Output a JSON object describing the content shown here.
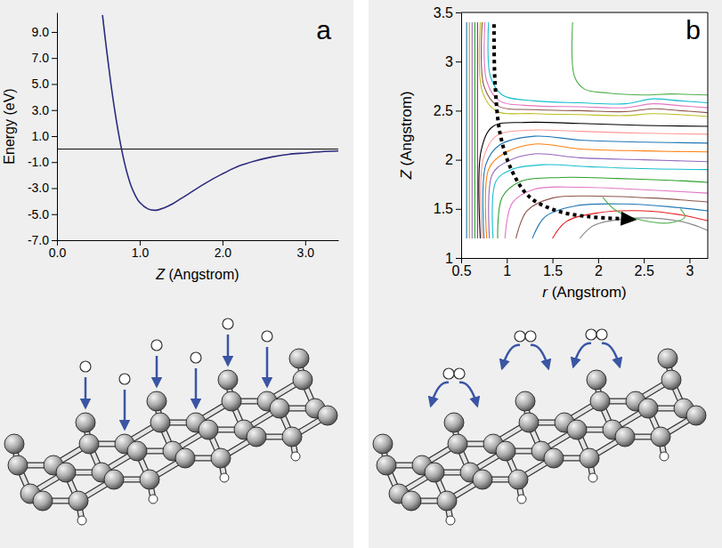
{
  "chart_data": [
    {
      "type": "line",
      "label": "a",
      "xlabel": "Z (Angstrom)",
      "ylabel": "Energy (eV)",
      "color": "#2b2b7e",
      "x": [
        0.55,
        0.6,
        0.65,
        0.7,
        0.75,
        0.8,
        0.85,
        0.9,
        0.95,
        1.0,
        1.1,
        1.2,
        1.3,
        1.4,
        1.5,
        1.6,
        1.8,
        2.0,
        2.2,
        2.4,
        2.6,
        2.8,
        3.0,
        3.2,
        3.4
      ],
      "values": [
        10.3,
        7.6,
        5.1,
        2.9,
        1.0,
        -0.6,
        -1.9,
        -2.9,
        -3.6,
        -4.1,
        -4.6,
        -4.7,
        -4.5,
        -4.2,
        -3.8,
        -3.4,
        -2.6,
        -1.9,
        -1.3,
        -0.9,
        -0.6,
        -0.4,
        -0.3,
        -0.2,
        -0.15
      ],
      "baseline": 0,
      "xlim": [
        0,
        3.4
      ],
      "xticks": [
        {
          "value": 0,
          "label": "0.0"
        },
        {
          "value": 1,
          "label": "1.0"
        },
        {
          "value": 2,
          "label": "2.0"
        },
        {
          "value": 3,
          "label": "3.0"
        }
      ],
      "ylim": [
        -7,
        10.5
      ],
      "yticks": [
        {
          "value": 9,
          "label": "9.0"
        },
        {
          "value": 7,
          "label": "7.0"
        },
        {
          "value": 5,
          "label": "5.0"
        },
        {
          "value": 3,
          "label": "3.0"
        },
        {
          "value": 1,
          "label": "1.0"
        },
        {
          "value": -1,
          "label": "-1.0"
        },
        {
          "value": -3,
          "label": "-3.0"
        },
        {
          "value": -5,
          "label": "-5.0"
        },
        {
          "value": -7,
          "label": "-7.0"
        }
      ]
    },
    {
      "type": "contour",
      "label": "b",
      "xlabel": "r (Angstrom)",
      "ylabel": "Z (Angstrom)",
      "xlim": [
        0.5,
        3.2
      ],
      "xticks": [
        0.5,
        1,
        1.5,
        2,
        2.5,
        3
      ],
      "ylim": [
        1,
        3.5
      ],
      "yticks": [
        1,
        1.5,
        2,
        2.5,
        3,
        3.5
      ],
      "series": [
        {
          "color": "#1f77b4",
          "x": [
            0.56,
            0.56
          ],
          "values": [
            3.4,
            1.2
          ]
        },
        {
          "color": "#ff7f0e",
          "x": [
            0.59,
            0.59
          ],
          "values": [
            3.4,
            1.2
          ]
        },
        {
          "color": "#9467bd",
          "x": [
            0.62,
            0.62
          ],
          "values": [
            3.4,
            1.2
          ]
        },
        {
          "color": "#2ca02c",
          "x": [
            0.65,
            0.65
          ],
          "values": [
            3.4,
            1.2
          ]
        },
        {
          "color": "#d62728",
          "x": [
            0.68,
            0.68
          ],
          "values": [
            3.4,
            1.2
          ]
        },
        {
          "color": "#4daf4a",
          "x": [
            1.72,
            1.74,
            1.85,
            2.1,
            2.5,
            2.8,
            3.2
          ],
          "values": [
            3.4,
            2.85,
            2.72,
            2.68,
            2.66,
            2.67,
            2.66
          ]
        },
        {
          "color": "#17becf",
          "x": [
            0.8,
            0.82,
            0.95,
            1.3,
            1.8,
            2.3,
            2.6,
            2.9,
            3.2
          ],
          "values": [
            3.4,
            2.85,
            2.66,
            2.6,
            2.58,
            2.57,
            2.62,
            2.6,
            2.58
          ]
        },
        {
          "color": "#e377c2",
          "x": [
            0.76,
            0.78,
            0.92,
            1.3,
            1.8,
            2.3,
            2.6,
            2.9,
            3.2
          ],
          "values": [
            3.4,
            2.8,
            2.6,
            2.55,
            2.54,
            2.53,
            2.57,
            2.55,
            2.53
          ]
        },
        {
          "color": "#8c564b",
          "x": [
            0.73,
            0.75,
            0.9,
            1.3,
            1.8,
            2.3,
            2.6,
            2.9,
            3.2
          ],
          "values": [
            3.4,
            2.75,
            2.55,
            2.51,
            2.5,
            2.49,
            2.52,
            2.5,
            2.48
          ]
        },
        {
          "color": "#bcbd22",
          "x": [
            0.71,
            0.73,
            0.88,
            1.3,
            1.8,
            2.3,
            2.6,
            3.2
          ],
          "values": [
            3.4,
            2.7,
            2.5,
            2.47,
            2.46,
            2.45,
            2.47,
            2.44
          ]
        },
        {
          "color": "#000000",
          "x": [
            0.71,
            0.72,
            0.85,
            1.2,
            1.8,
            2.5,
            3.2
          ],
          "values": [
            1.2,
            2.1,
            2.34,
            2.38,
            2.37,
            2.35,
            2.34
          ]
        },
        {
          "color": "#ff9896",
          "x": [
            0.73,
            0.74,
            0.88,
            1.2,
            1.8,
            2.5,
            3.2
          ],
          "values": [
            1.2,
            2.0,
            2.24,
            2.3,
            2.29,
            2.27,
            2.26
          ]
        },
        {
          "color": "#1f77b4",
          "x": [
            0.75,
            0.77,
            0.92,
            1.3,
            1.8,
            2.5,
            3.2
          ],
          "values": [
            1.2,
            1.95,
            2.15,
            2.24,
            2.2,
            2.18,
            2.17
          ]
        },
        {
          "color": "#ff7f0e",
          "x": [
            0.78,
            0.8,
            0.96,
            1.3,
            1.8,
            2.5,
            3.2
          ],
          "values": [
            1.2,
            1.9,
            2.06,
            2.16,
            2.11,
            2.09,
            2.08
          ]
        },
        {
          "color": "#9467bd",
          "x": [
            0.81,
            0.84,
            1.0,
            1.3,
            1.8,
            2.5,
            3.2
          ],
          "values": [
            1.2,
            1.85,
            1.98,
            2.06,
            2.02,
            2.0,
            1.98
          ]
        },
        {
          "color": "#17becf",
          "x": [
            0.85,
            0.88,
            1.05,
            1.4,
            1.9,
            2.5,
            3.2
          ],
          "values": [
            1.2,
            1.78,
            1.9,
            1.95,
            1.93,
            1.91,
            1.9
          ]
        },
        {
          "color": "#2ca02c",
          "x": [
            0.9,
            0.95,
            1.15,
            1.6,
            2.2,
            2.8,
            3.2
          ],
          "values": [
            1.2,
            1.62,
            1.78,
            1.82,
            1.81,
            1.79,
            1.77
          ]
        },
        {
          "color": "#e377c2",
          "x": [
            0.98,
            1.06,
            1.3,
            1.8,
            2.4,
            3.2
          ],
          "values": [
            1.2,
            1.56,
            1.7,
            1.72,
            1.7,
            1.66
          ]
        },
        {
          "color": "#8c564b",
          "x": [
            1.1,
            1.22,
            1.5,
            2.0,
            2.6,
            3.2
          ],
          "values": [
            1.2,
            1.48,
            1.61,
            1.63,
            1.61,
            1.57
          ]
        },
        {
          "color": "#1f77b4",
          "x": [
            1.28,
            1.42,
            1.75,
            2.3,
            2.8,
            3.2
          ],
          "values": [
            1.2,
            1.42,
            1.53,
            1.55,
            1.52,
            1.48
          ]
        },
        {
          "color": "#e41a1c",
          "x": [
            1.5,
            1.65,
            2.0,
            2.5,
            2.9,
            3.2
          ],
          "values": [
            1.2,
            1.37,
            1.46,
            1.48,
            1.44,
            1.38
          ]
        },
        {
          "color": "#8c8c8c",
          "x": [
            1.8,
            1.95,
            2.3,
            2.7,
            3.0,
            3.2
          ],
          "values": [
            1.2,
            1.33,
            1.4,
            1.4,
            1.35,
            1.28
          ]
        },
        {
          "color": "#4daf4a",
          "x": [
            2.05,
            2.2,
            2.5,
            2.8,
            2.95,
            2.9
          ],
          "values": [
            1.62,
            1.48,
            1.38,
            1.36,
            1.42,
            1.5
          ]
        }
      ],
      "arrow": {
        "x": [
          0.86,
          0.87,
          0.93,
          1.06,
          1.25,
          1.55,
          1.9,
          2.25
        ],
        "values": [
          3.38,
          2.8,
          2.25,
          1.88,
          1.62,
          1.48,
          1.42,
          1.4
        ],
        "color": "#000000",
        "line_style": "dashed"
      }
    }
  ]
}
